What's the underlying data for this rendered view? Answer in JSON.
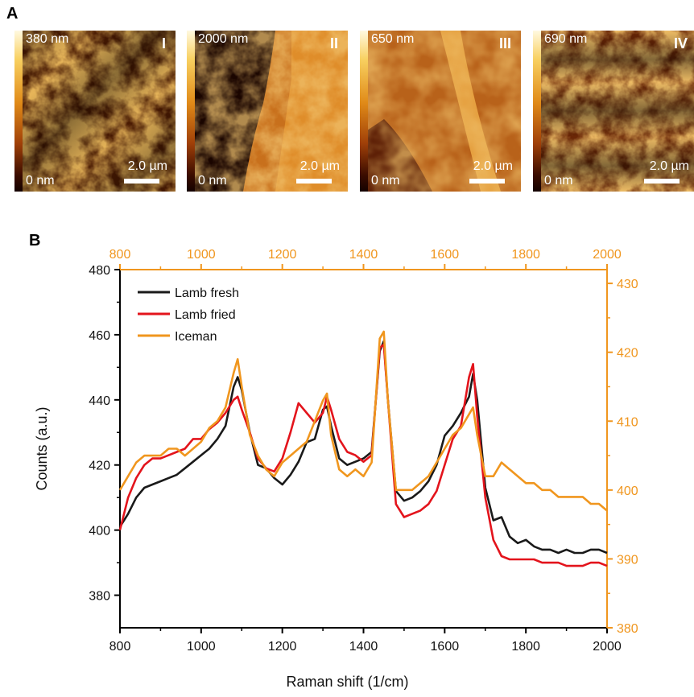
{
  "panel_a_label": "A",
  "panel_b_label": "B",
  "afm_images": [
    {
      "numeral": "I",
      "max": "380 nm",
      "min": "0 nm",
      "scale": "2.0 µm"
    },
    {
      "numeral": "II",
      "max": "2000 nm",
      "min": "0 nm",
      "scale": "2.0 µm"
    },
    {
      "numeral": "III",
      "max": "650 nm",
      "min": "0 nm",
      "scale": "2.0 µm"
    },
    {
      "numeral": "IV",
      "max": "690 nm",
      "min": "0 nm",
      "scale": "2.0 µm"
    }
  ],
  "colors": {
    "fresh": "#1a1a1a",
    "fried": "#e3141c",
    "iceman": "#f0961e"
  },
  "chart_data": {
    "type": "line",
    "xlabel": "Raman shift (1/cm)",
    "ylabel": "Counts (a.u.)",
    "xlim": [
      800,
      2000
    ],
    "ylim_left": [
      370,
      480
    ],
    "ylim_right": [
      380,
      432
    ],
    "x_ticks": [
      800,
      1000,
      1200,
      1400,
      1600,
      1800,
      2000
    ],
    "y_ticks_left": [
      380,
      400,
      420,
      440,
      460,
      480
    ],
    "y_ticks_right": [
      380,
      390,
      400,
      410,
      420,
      430
    ],
    "legend_position": "top-left",
    "x": [
      800,
      820,
      840,
      860,
      880,
      900,
      920,
      940,
      960,
      980,
      1000,
      1020,
      1040,
      1060,
      1080,
      1090,
      1100,
      1120,
      1140,
      1160,
      1180,
      1200,
      1220,
      1240,
      1260,
      1280,
      1300,
      1310,
      1320,
      1340,
      1360,
      1380,
      1400,
      1420,
      1440,
      1450,
      1460,
      1480,
      1500,
      1520,
      1540,
      1560,
      1580,
      1600,
      1620,
      1640,
      1660,
      1670,
      1680,
      1700,
      1720,
      1740,
      1760,
      1780,
      1800,
      1820,
      1840,
      1860,
      1880,
      1900,
      1920,
      1940,
      1960,
      1980,
      2000
    ],
    "series": [
      {
        "name": "Lamb fresh",
        "axis": "left",
        "values": [
          401,
          405,
          410,
          413,
          414,
          415,
          416,
          417,
          419,
          421,
          423,
          425,
          428,
          432,
          444,
          447,
          443,
          430,
          420,
          419,
          416,
          414,
          417,
          421,
          427,
          428,
          437,
          438,
          432,
          422,
          420,
          421,
          422,
          424,
          455,
          458,
          440,
          412,
          409,
          410,
          412,
          415,
          420,
          429,
          432,
          436,
          441,
          448,
          440,
          413,
          403,
          404,
          398,
          396,
          397,
          395,
          394,
          394,
          393,
          394,
          393,
          393,
          394,
          394,
          393
        ]
      },
      {
        "name": "Lamb fried",
        "axis": "left",
        "values": [
          400,
          410,
          416,
          420,
          422,
          422,
          423,
          424,
          425,
          428,
          428,
          431,
          433,
          436,
          440,
          441,
          437,
          430,
          422,
          419,
          418,
          422,
          430,
          439,
          436,
          433,
          436,
          441,
          437,
          428,
          424,
          423,
          421,
          423,
          456,
          457,
          440,
          408,
          404,
          405,
          406,
          408,
          412,
          420,
          428,
          432,
          447,
          451,
          435,
          410,
          397,
          392,
          391,
          391,
          391,
          391,
          390,
          390,
          390,
          389,
          389,
          389,
          390,
          390,
          389
        ]
      },
      {
        "name": "Iceman",
        "axis": "right",
        "values": [
          400,
          402,
          404,
          405,
          405,
          405,
          406,
          406,
          405,
          406,
          407,
          409,
          410,
          412,
          417,
          419,
          415,
          408,
          405,
          403,
          402,
          404,
          405,
          406,
          407,
          410,
          413,
          414,
          408,
          403,
          402,
          403,
          402,
          404,
          422,
          423,
          413,
          400,
          400,
          400,
          401,
          402,
          404,
          406,
          408,
          409,
          411,
          412,
          408,
          402,
          402,
          404,
          403,
          402,
          401,
          401,
          400,
          400,
          399,
          399,
          399,
          399,
          398,
          398,
          397
        ]
      }
    ]
  }
}
